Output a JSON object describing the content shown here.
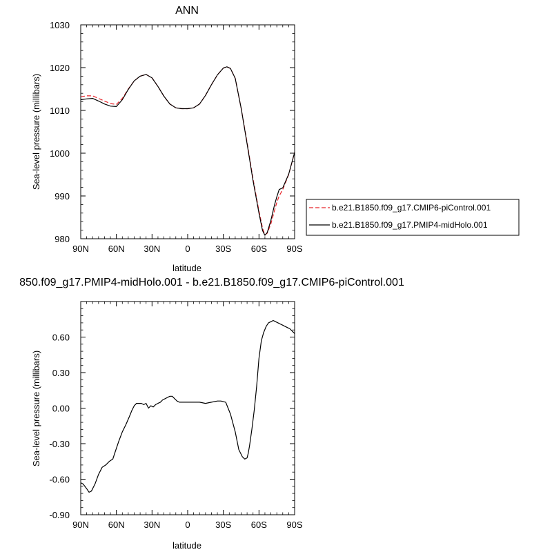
{
  "chart_data": [
    {
      "type": "line",
      "title": "ANN",
      "xlabel": "latitude",
      "ylabel": "Sea-level pressure (millibars)",
      "xlim": [
        90,
        -90
      ],
      "ylim": [
        980,
        1030
      ],
      "x_ticks": [
        90,
        60,
        30,
        0,
        -30,
        -60,
        -90
      ],
      "x_tick_labels": [
        "90N",
        "60N",
        "30N",
        "0",
        "30S",
        "60S",
        "90S"
      ],
      "y_ticks": [
        980,
        990,
        1000,
        1010,
        1020,
        1030
      ],
      "y_tick_labels": [
        "980",
        "990",
        "1000",
        "1010",
        "1020",
        "1030"
      ],
      "grid": false,
      "legend_position": "right",
      "series": [
        {
          "name": "b.e21.B1850.f09_g17.CMIP6-piControl.001",
          "color": "#e8242a",
          "dash": "dashed",
          "x": [
            90,
            85,
            80,
            75,
            70,
            65,
            60,
            55,
            50,
            45,
            40,
            35,
            30,
            25,
            20,
            15,
            10,
            5,
            0,
            -5,
            -10,
            -15,
            -20,
            -25,
            -30,
            -33,
            -36,
            -40,
            -45,
            -50,
            -55,
            -60,
            -63,
            -65,
            -67,
            -70,
            -73,
            -75,
            -77,
            -80,
            -85,
            -90
          ],
          "y": [
            1013.2,
            1013.4,
            1013.4,
            1012.8,
            1012.2,
            1011.6,
            1011.4,
            1012.8,
            1015.0,
            1016.9,
            1018.0,
            1018.4,
            1017.6,
            1015.6,
            1013.3,
            1011.5,
            1010.6,
            1010.4,
            1010.4,
            1010.6,
            1011.5,
            1013.5,
            1016.0,
            1018.3,
            1019.9,
            1020.2,
            1019.8,
            1017.5,
            1010.5,
            1002.5,
            994.0,
            986.5,
            982.5,
            980.9,
            981.3,
            983.5,
            986.5,
            988.5,
            990.0,
            991.5,
            995.0,
            1000.2
          ]
        },
        {
          "name": "b.e21.B1850.f09_g17.PMIP4-midHolo.001",
          "color": "#000000",
          "dash": "solid",
          "x": [
            90,
            85,
            80,
            75,
            70,
            65,
            60,
            55,
            50,
            45,
            40,
            35,
            30,
            25,
            20,
            15,
            10,
            5,
            0,
            -5,
            -10,
            -15,
            -20,
            -25,
            -30,
            -33,
            -36,
            -40,
            -45,
            -50,
            -55,
            -60,
            -63,
            -65,
            -67,
            -70,
            -73,
            -75,
            -77,
            -80,
            -85,
            -90
          ],
          "y": [
            1012.5,
            1012.7,
            1012.8,
            1012.2,
            1011.5,
            1011.0,
            1010.9,
            1012.5,
            1014.9,
            1016.9,
            1018.0,
            1018.4,
            1017.6,
            1015.6,
            1013.3,
            1011.5,
            1010.6,
            1010.4,
            1010.4,
            1010.6,
            1011.5,
            1013.5,
            1016.0,
            1018.3,
            1019.9,
            1020.2,
            1019.8,
            1017.5,
            1010.5,
            1002.2,
            993.6,
            986.0,
            981.9,
            980.8,
            981.5,
            984.3,
            987.8,
            989.8,
            991.5,
            991.9,
            995.1,
            1000.2
          ]
        }
      ]
    },
    {
      "type": "line",
      "title": "850.f09_g17.PMIP4-midHolo.001 - b.e21.B1850.f09_g17.CMIP6-piControl.001",
      "xlabel": "latitude",
      "ylabel": "Sea-level pressure (millibars)",
      "xlim": [
        90,
        -90
      ],
      "ylim": [
        -0.9,
        0.9
      ],
      "x_ticks": [
        90,
        60,
        30,
        0,
        -30,
        -60,
        -90
      ],
      "x_tick_labels": [
        "90N",
        "60N",
        "30N",
        "0",
        "30S",
        "60S",
        "90S"
      ],
      "y_ticks": [
        -0.9,
        -0.6,
        -0.3,
        0.0,
        0.3,
        0.6
      ],
      "y_tick_labels": [
        "-0.90",
        "-0.60",
        "-0.30",
        "0.00",
        "0.30",
        "0.60"
      ],
      "grid": false,
      "series": [
        {
          "color": "#000000",
          "dash": "solid",
          "x": [
            90,
            88,
            85,
            83,
            81,
            78,
            75,
            72,
            69,
            66,
            63,
            61,
            58,
            55,
            52,
            49,
            47,
            45,
            43,
            41,
            39,
            37,
            35,
            33,
            31,
            29,
            27,
            25,
            23,
            21,
            19,
            17,
            15,
            13,
            11,
            9,
            7,
            4,
            0,
            -5,
            -10,
            -15,
            -20,
            -25,
            -28,
            -32,
            -36,
            -40,
            -43,
            -46,
            -48,
            -50,
            -51,
            -52,
            -54,
            -56,
            -58,
            -60,
            -62,
            -64,
            -66,
            -68,
            -70,
            -72,
            -74,
            -76,
            -78,
            -80,
            -82,
            -84,
            -86,
            -88,
            -90
          ],
          "y": [
            -0.63,
            -0.64,
            -0.68,
            -0.71,
            -0.7,
            -0.64,
            -0.56,
            -0.5,
            -0.48,
            -0.45,
            -0.43,
            -0.37,
            -0.28,
            -0.2,
            -0.14,
            -0.07,
            -0.02,
            0.02,
            0.04,
            0.04,
            0.04,
            0.03,
            0.04,
            0.0,
            0.02,
            0.01,
            0.03,
            0.04,
            0.05,
            0.07,
            0.08,
            0.09,
            0.1,
            0.1,
            0.08,
            0.06,
            0.05,
            0.05,
            0.05,
            0.05,
            0.05,
            0.04,
            0.05,
            0.06,
            0.06,
            0.05,
            -0.05,
            -0.2,
            -0.35,
            -0.41,
            -0.43,
            -0.42,
            -0.38,
            -0.32,
            -0.18,
            -0.02,
            0.18,
            0.42,
            0.57,
            0.64,
            0.69,
            0.72,
            0.73,
            0.74,
            0.73,
            0.72,
            0.71,
            0.7,
            0.69,
            0.68,
            0.67,
            0.65,
            0.63
          ]
        }
      ]
    }
  ]
}
